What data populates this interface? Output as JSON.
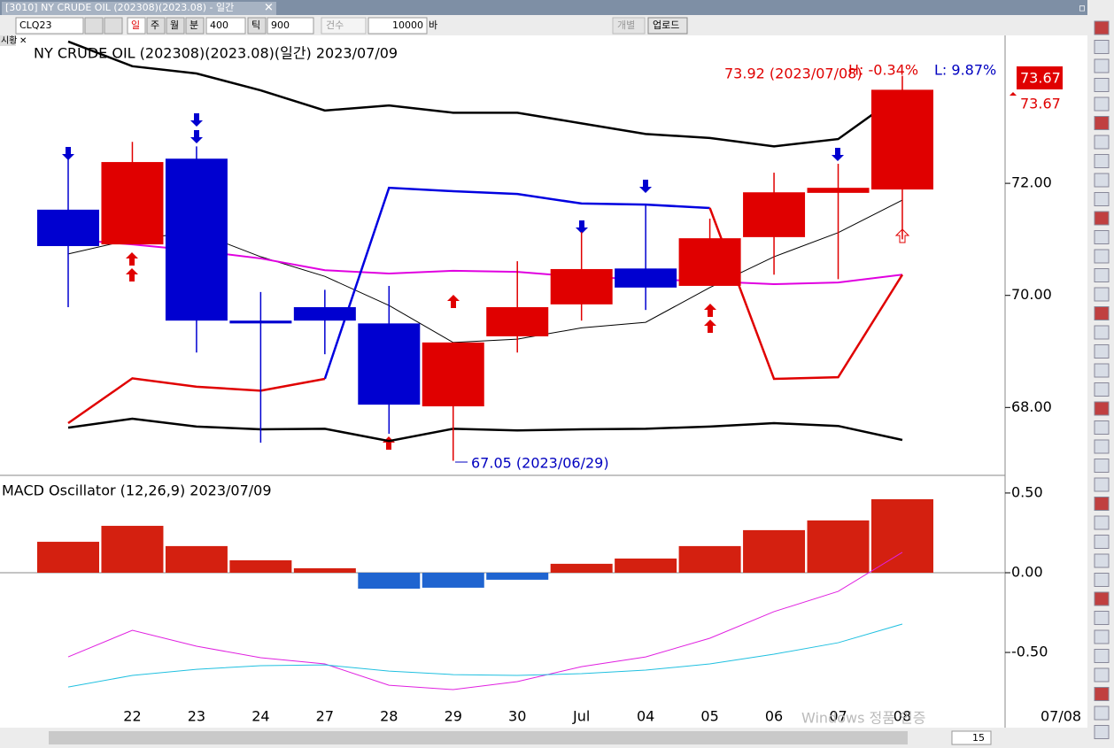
{
  "window": {
    "title": "[3010] NY CRUDE OIL (202308)(2023.08) - 일간",
    "tab": "시황",
    "watermark": "Windows 정품 인증",
    "scroll_value": "15"
  },
  "toolbar": {
    "symbol": "CLQ23",
    "periods": [
      "일",
      "주",
      "월",
      "분"
    ],
    "minute_value": "400",
    "tick_label": "틱",
    "tick_value": "900",
    "count_label": "건수",
    "count_value": "10000",
    "bar_label": "바",
    "individual": "개별",
    "upload": "업로드"
  },
  "chart_data": [
    {
      "type": "candlestick",
      "title": "NY CRUDE OIL (202308)(2023.08)(일간) 2023/07/09",
      "categories": [
        null,
        "22",
        "23",
        "24",
        "27",
        "28",
        "29",
        "30",
        "Jul",
        "04",
        "05",
        "06",
        "07",
        "08"
      ],
      "open": [
        71.53,
        70.91,
        72.44,
        69.55,
        69.79,
        69.5,
        68.02,
        69.27,
        69.84,
        70.48,
        70.17,
        71.04,
        71.83,
        71.89
      ],
      "high": [
        72.43,
        72.74,
        72.66,
        70.06,
        70.1,
        70.17,
        69.16,
        70.61,
        71.13,
        71.61,
        71.37,
        72.19,
        72.35,
        73.92
      ],
      "low": [
        69.79,
        70.91,
        68.98,
        67.37,
        68.95,
        67.53,
        67.05,
        68.98,
        69.55,
        69.74,
        70.17,
        70.37,
        70.29,
        71.0
      ],
      "close": [
        70.88,
        72.38,
        69.55,
        69.5,
        69.55,
        68.05,
        69.16,
        69.79,
        70.47,
        70.14,
        71.02,
        71.84,
        71.92,
        73.67
      ],
      "up_color": "#e00000",
      "down_color": "#0000d0",
      "series": [
        {
          "color": "#000000",
          "width": 2.5,
          "values": [
            74.53,
            74.09,
            73.96,
            73.66,
            73.3,
            73.39,
            73.26,
            73.26,
            73.07,
            72.88,
            72.81,
            72.66,
            72.79,
            73.61
          ]
        },
        {
          "color": "#000000",
          "width": 2.5,
          "values": [
            67.64,
            67.8,
            67.66,
            67.61,
            67.62,
            67.4,
            67.62,
            67.59,
            67.61,
            67.62,
            67.66,
            67.72,
            67.67,
            67.42
          ]
        },
        {
          "color": "#000000",
          "width": 1,
          "values": [
            70.74,
            71.0,
            71.13,
            70.69,
            70.34,
            69.82,
            69.16,
            69.22,
            69.42,
            69.52,
            70.14,
            70.69,
            71.12,
            71.7
          ]
        },
        {
          "color": "#e000e0",
          "width": 2,
          "values": [
            71.0,
            70.91,
            70.8,
            70.66,
            70.45,
            70.39,
            70.44,
            70.42,
            70.33,
            70.29,
            70.25,
            70.2,
            70.23,
            70.37
          ]
        },
        {
          "color": "#0000e0",
          "width": 2.5,
          "values": [
            null,
            null,
            null,
            null,
            68.51,
            71.92,
            71.86,
            71.81,
            71.64,
            71.62,
            71.56,
            null,
            null,
            null
          ]
        },
        {
          "color": "#e00000",
          "width": 2.5,
          "values": [
            67.72,
            68.52,
            68.37,
            68.3,
            68.51,
            null,
            null,
            null,
            null,
            null,
            71.56,
            68.51,
            68.54,
            70.37
          ]
        }
      ],
      "ylim": [
        66.82,
        74.64
      ],
      "yticks": [
        {
          "value": 68,
          "label": "68.00"
        },
        {
          "value": 70,
          "label": "70.00"
        },
        {
          "value": 72,
          "label": "72.00"
        }
      ],
      "high_label": "73.92 (2023/07/08)",
      "high_change": "H: -0.34%",
      "low_change": "L: 9.87%",
      "low_label": "67.05 (2023/06/29)",
      "last_price_labels": [
        "73.67",
        "73.67"
      ]
    },
    {
      "type": "macd",
      "title": "MACD Oscillator  (12,26,9) 2023/07/09",
      "values": [
        0.194,
        0.294,
        0.167,
        0.078,
        0.028,
        -0.1,
        -0.094,
        -0.044,
        0.056,
        0.089,
        0.167,
        0.267,
        0.328,
        0.461
      ],
      "up_color": "#d42010",
      "down_color": "#1f64d0",
      "series": [
        {
          "color": "#e020e0",
          "values": [
            -0.528,
            -0.361,
            -0.461,
            -0.533,
            -0.572,
            -0.706,
            -0.733,
            -0.683,
            -0.589,
            -0.528,
            -0.411,
            -0.244,
            -0.117,
            0.128
          ]
        },
        {
          "color": "#20c0e0",
          "values": [
            -0.717,
            -0.644,
            -0.606,
            -0.583,
            -0.578,
            -0.617,
            -0.639,
            -0.644,
            -0.633,
            -0.611,
            -0.572,
            -0.511,
            -0.439,
            -0.322
          ]
        }
      ],
      "ylim": [
        -0.794,
        0.594
      ],
      "yticks": [
        {
          "value": -0.5,
          "label": "-0.50"
        },
        {
          "value": 0,
          "label": "0.00"
        },
        {
          "value": 0.5,
          "label": "0.50"
        }
      ],
      "x_end_label": "07/08"
    }
  ]
}
